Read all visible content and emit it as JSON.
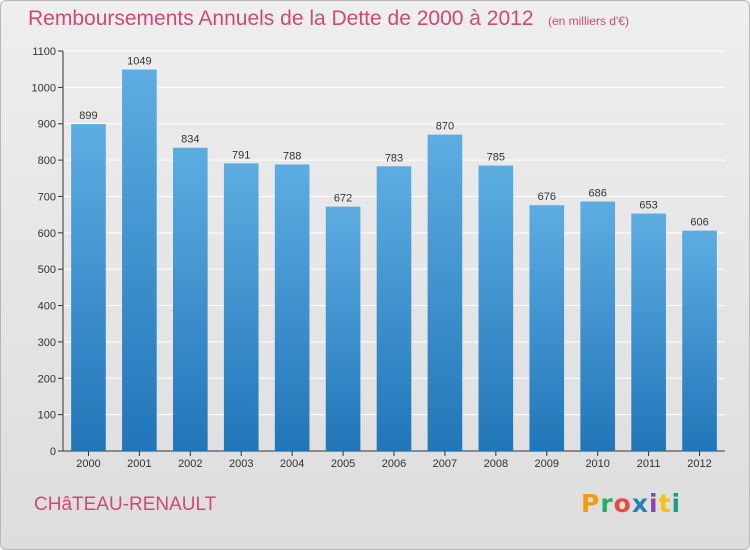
{
  "title": "Remboursements Annuels de la Dette de 2000 à 2012",
  "subtitle": "(en milliers d'€)",
  "footer": {
    "commune": "CHâTEAU-RENAULT"
  },
  "logo": {
    "text": "Proxiti",
    "colors": [
      "#f39c12",
      "#27ae60",
      "#e74c3c",
      "#2980b9",
      "#8e44ad",
      "#f1c40f",
      "#16a085"
    ]
  },
  "colors": {
    "bar_top": "#5dade2",
    "bar_bottom": "#2176b8",
    "accent": "#d04878",
    "axis": "#333333",
    "grid": "#ffffff"
  },
  "chart_data": {
    "type": "bar",
    "title": "Remboursements Annuels de la Dette de 2000 à 2012",
    "categories": [
      "2000",
      "2001",
      "2002",
      "2003",
      "2004",
      "2005",
      "2006",
      "2007",
      "2008",
      "2009",
      "2010",
      "2011",
      "2012"
    ],
    "values": [
      899,
      1049,
      834,
      791,
      788,
      672,
      783,
      870,
      785,
      676,
      686,
      653,
      606
    ],
    "ylim": [
      0,
      1100
    ],
    "yticks": [
      0,
      100,
      200,
      300,
      400,
      500,
      600,
      700,
      800,
      900,
      1000,
      1100
    ],
    "grid": true,
    "data_labels": true
  }
}
